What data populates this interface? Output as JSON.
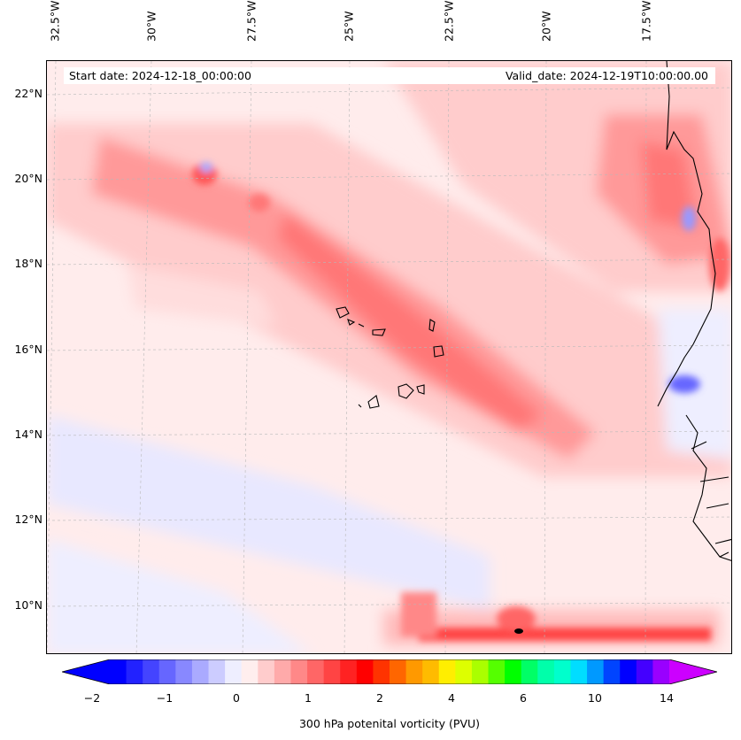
{
  "map": {
    "lon_labels": [
      "32.5°W",
      "30°W",
      "27.5°W",
      "25°W",
      "22.5°W",
      "20°W",
      "17.5°W"
    ],
    "lat_labels": [
      "22°N",
      "20°N",
      "18°N",
      "16°N",
      "14°N",
      "12°N",
      "10°N"
    ],
    "start_date": "Start date: 2024-12-18_00:00:00",
    "valid_date": "Valid_date: 2024-12-19T10:00:00.00"
  },
  "colorbar": {
    "ticks": [
      "−2",
      "−1",
      "0",
      "1",
      "2",
      "4",
      "6",
      "10",
      "14"
    ],
    "label": "300 hPa potenital vorticity (PVU)",
    "colors": [
      "#0000ff",
      "#2222ff",
      "#4444ff",
      "#6666ff",
      "#8888ff",
      "#aaaaff",
      "#ccccff",
      "#eeeeff",
      "#ffeeee",
      "#ffcccc",
      "#ffaaaa",
      "#ff8888",
      "#ff6666",
      "#ff4444",
      "#ff2222",
      "#ff0000",
      "#ff3300",
      "#ff6600",
      "#ff9900",
      "#ffbb00",
      "#ffee00",
      "#ddff00",
      "#aaff00",
      "#55ff00",
      "#00ff00",
      "#00ff66",
      "#00ffaa",
      "#00ffcc",
      "#00ddff",
      "#0099ff",
      "#0044ff",
      "#0000ff",
      "#4400ff",
      "#9900ff"
    ],
    "extend_low": "#0000ff",
    "extend_high": "#cc00ff"
  }
}
